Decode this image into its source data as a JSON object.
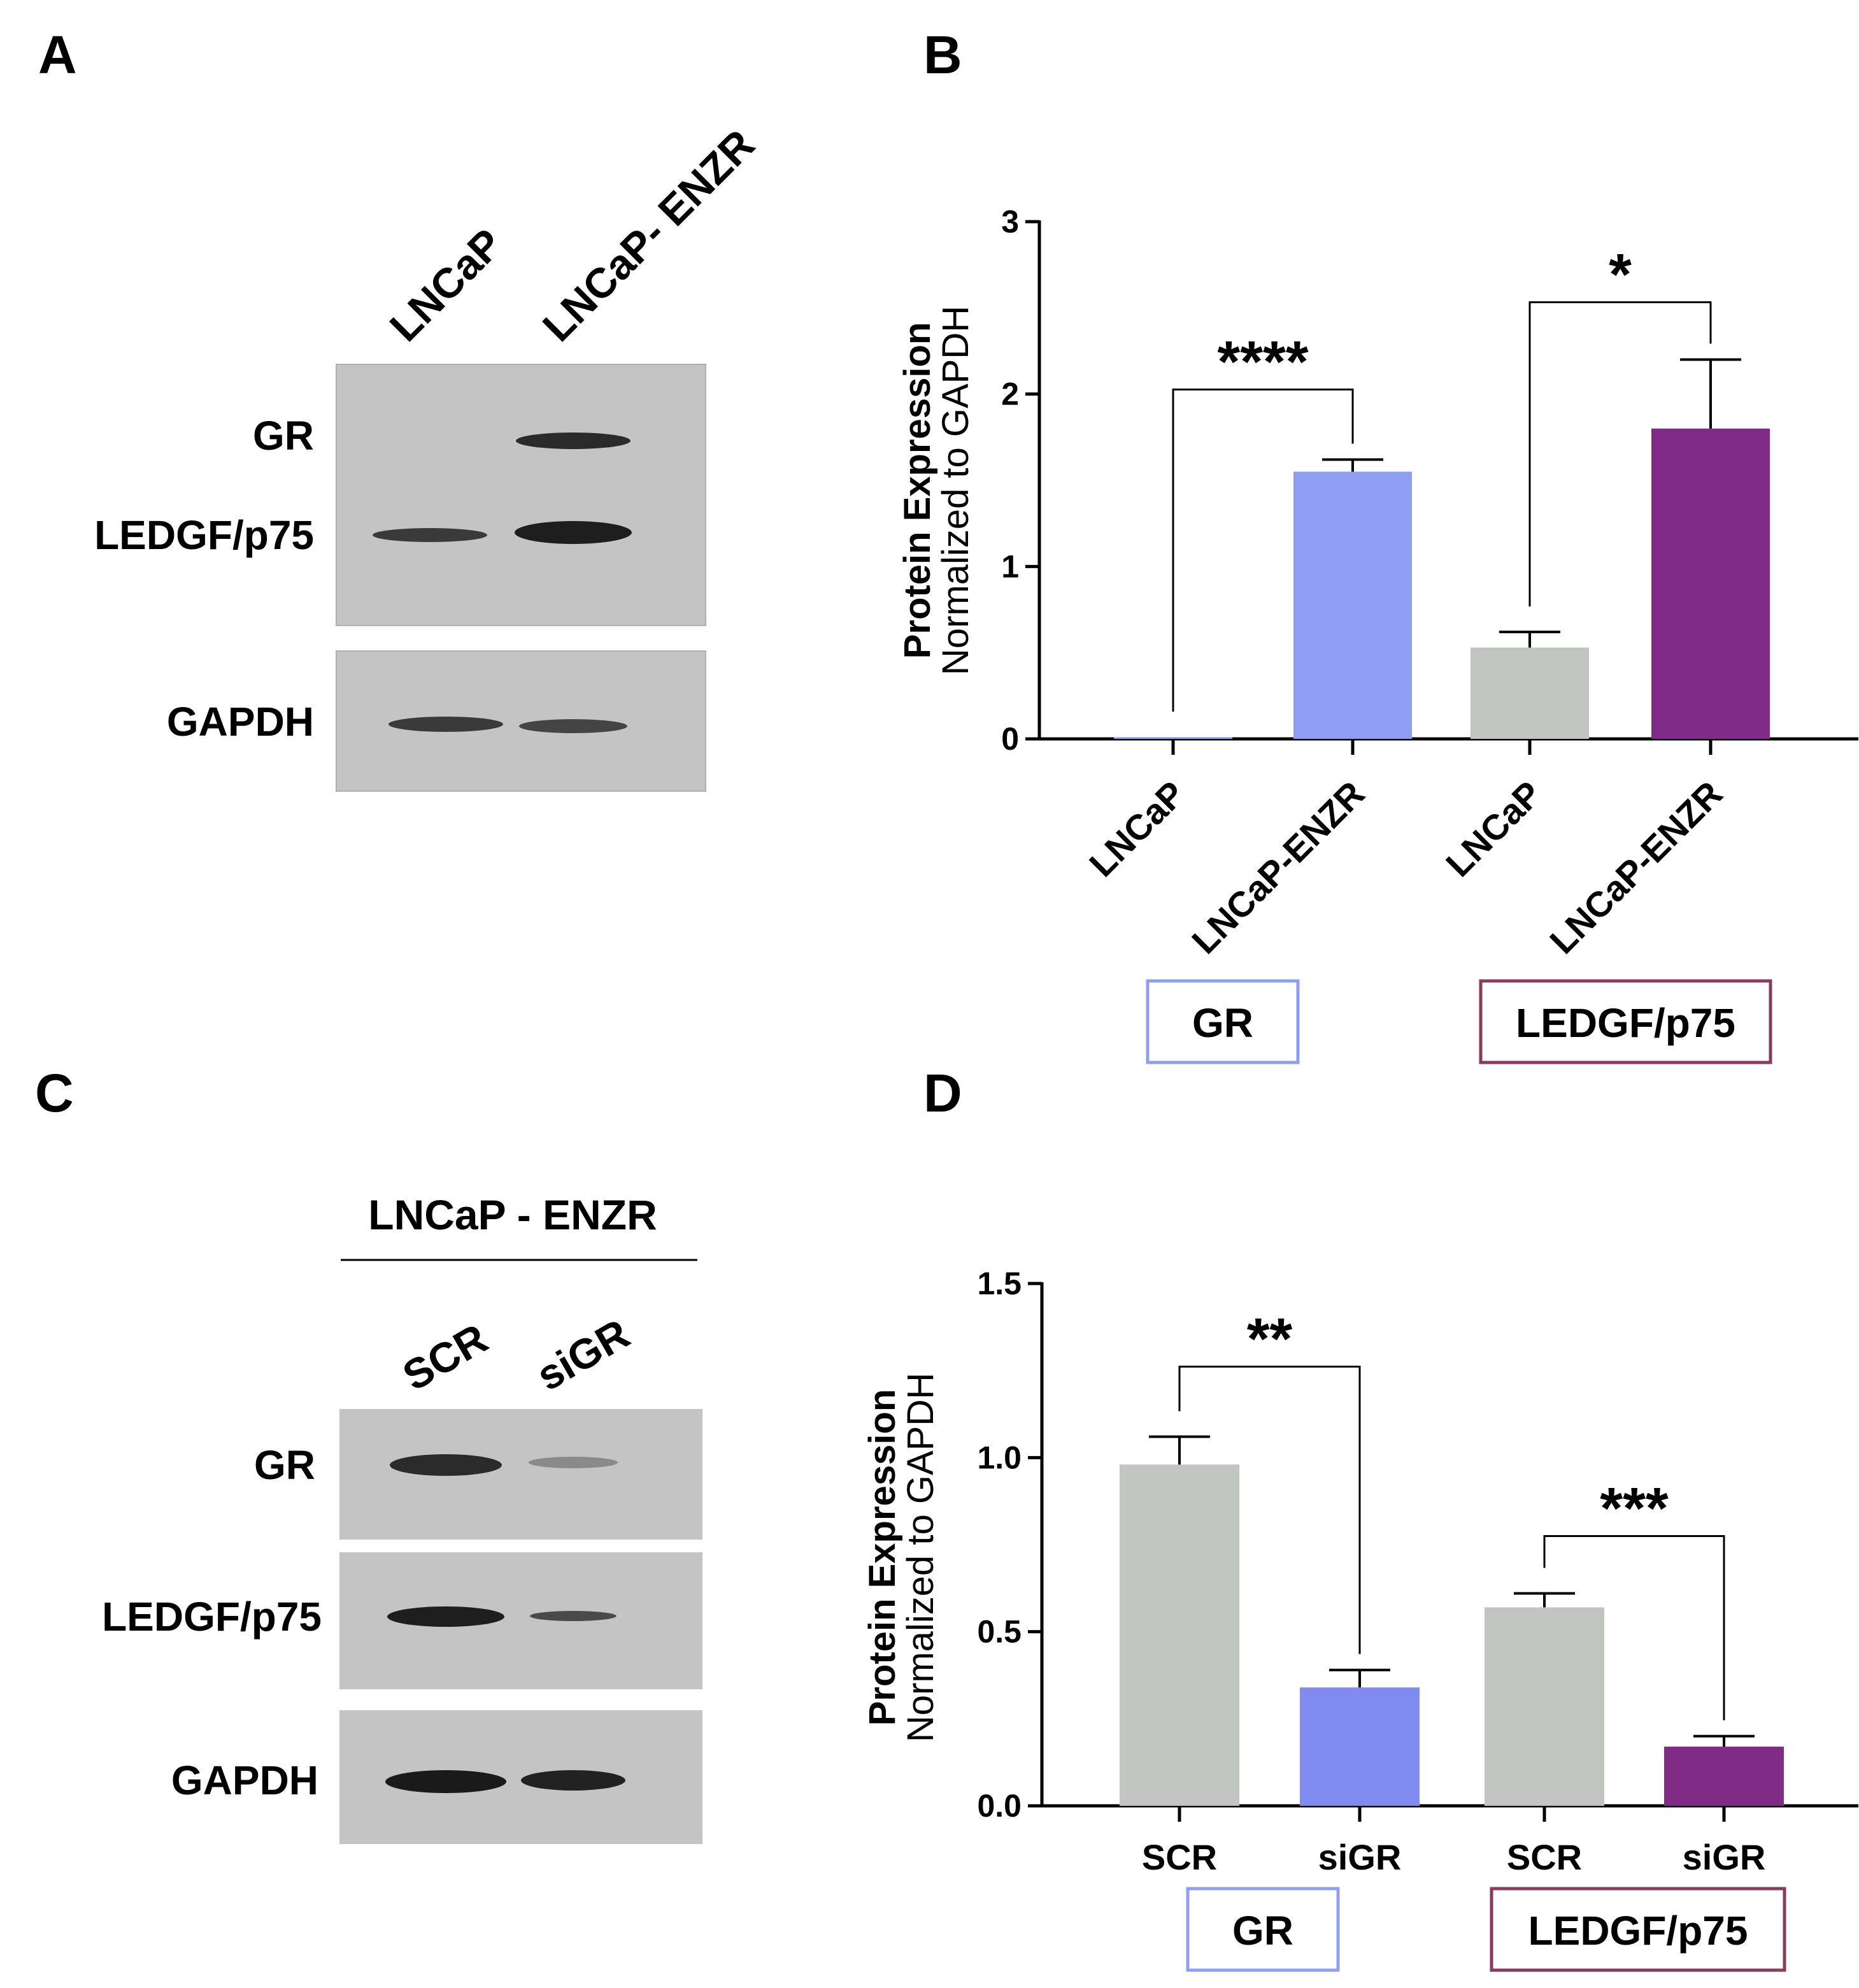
{
  "colors": {
    "gr_accent": "#8f9ef2",
    "gr_bar_d": "#7f8bef",
    "ledgf_accent": "#7f2a84",
    "ledgf_frame": "#8a3a5c",
    "gray_bar": "#c2c4c2",
    "blot_bg": "#c4c4c4",
    "band": "#2a2a2a"
  },
  "panel_a": {
    "letter": "A",
    "lanes": [
      "LNCaP",
      "LNCaP- ENZR"
    ],
    "rows": [
      "GR",
      "LEDGF/p75",
      "GAPDH"
    ]
  },
  "panel_c": {
    "letter": "C",
    "header": "LNCaP - ENZR",
    "lanes": [
      "SCR",
      "siGR"
    ],
    "rows": [
      "GR",
      "LEDGF/p75",
      "GAPDH"
    ]
  },
  "chart_data": [
    {
      "panel": "B",
      "type": "bar",
      "ylabel_bold": "Protein Expression",
      "ylabel": "Normalized to GAPDH",
      "ylim": [
        0,
        3
      ],
      "yticks": [
        "0",
        "1",
        "2",
        "3"
      ],
      "categories": [
        "LNCaP",
        "LNCaP-ENZR",
        "LNCaP",
        "LNCaP-ENZR"
      ],
      "values": [
        0.01,
        1.55,
        0.53,
        1.8
      ],
      "errors": [
        0.0,
        0.07,
        0.09,
        0.4
      ],
      "groups": [
        "GR",
        "LEDGF/p75"
      ],
      "significance": [
        {
          "from": 0,
          "to": 1,
          "label": "****"
        },
        {
          "from": 2,
          "to": 3,
          "label": "*"
        }
      ]
    },
    {
      "panel": "D",
      "type": "bar",
      "ylabel_bold": "Protein Expression",
      "ylabel": "Normalized to GAPDH",
      "ylim": [
        0,
        1.5
      ],
      "yticks": [
        "0.0",
        "0.5",
        "1.0",
        "1.5"
      ],
      "categories": [
        "SCR",
        "siGR",
        "SCR",
        "siGR"
      ],
      "values": [
        0.98,
        0.34,
        0.57,
        0.17
      ],
      "errors": [
        0.08,
        0.05,
        0.04,
        0.03
      ],
      "groups": [
        "GR",
        "LEDGF/p75"
      ],
      "significance": [
        {
          "from": 0,
          "to": 1,
          "label": "**"
        },
        {
          "from": 2,
          "to": 3,
          "label": "***"
        }
      ]
    }
  ]
}
